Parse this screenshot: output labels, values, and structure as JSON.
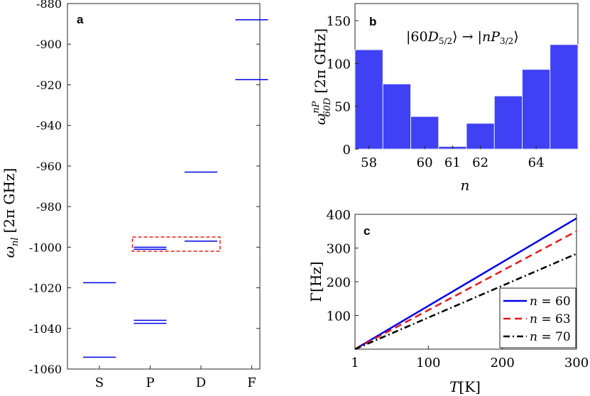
{
  "chart_data": [
    {
      "id": "a",
      "type": "energy-level-diagram",
      "panel_label": "a",
      "ylabel": "ω_nl [2π GHz]",
      "ylabel_main": "ω",
      "ylabel_sub": "nl",
      "ylabel_unit": "[2π GHz]",
      "ylim": [
        -1060,
        -880
      ],
      "yticks": [
        -880,
        -900,
        -920,
        -940,
        -960,
        -980,
        -1000,
        -1020,
        -1040,
        -1060
      ],
      "categories": [
        "S",
        "P",
        "D",
        "F"
      ],
      "levels": [
        {
          "category": "S",
          "value": -1017.5
        },
        {
          "category": "S",
          "value": -1054.2
        },
        {
          "category": "P",
          "value": -1000.0
        },
        {
          "category": "P",
          "value": -1001.0
        },
        {
          "category": "P",
          "value": -1036.0
        },
        {
          "category": "P",
          "value": -1037.5
        },
        {
          "category": "D",
          "value": -963.0
        },
        {
          "category": "D",
          "value": -997.0
        },
        {
          "category": "F",
          "value": -888.0
        },
        {
          "category": "F",
          "value": -917.5
        }
      ],
      "highlight_box": {
        "from_category": "P",
        "to_category": "D",
        "ymin": -1002,
        "ymax": -995,
        "color": "#e41a1c"
      },
      "level_color": "#0000e6"
    },
    {
      "id": "b",
      "type": "bar",
      "panel_label": "b",
      "annotation": "|60D5/2⟩ → |nP3/2⟩",
      "ylabel": "ω 60D nP [2π GHz]",
      "ylabel_main": "ω",
      "ylabel_sup": "nP",
      "ylabel_sub": "60D",
      "ylabel_unit": "[2π GHz]",
      "xlabel": "n",
      "categories": [
        57.5,
        58.5,
        59.5,
        60.5,
        61.5,
        62.5,
        63.5,
        64.5
      ],
      "values": [
        116,
        76,
        38,
        3,
        30,
        62,
        93,
        122
      ],
      "ylim": [
        0,
        160
      ],
      "yticks": [
        0,
        50,
        100,
        150
      ],
      "xlim": [
        57.5,
        65.5
      ],
      "xticks": [
        58,
        60,
        61,
        62,
        64
      ],
      "bar_color": "#4040f5"
    },
    {
      "id": "c",
      "type": "line",
      "panel_label": "c",
      "xlabel_main": "T",
      "xlabel_unit": "[K]",
      "ylabel": "Γ[Hz]",
      "xlim": [
        1,
        300
      ],
      "ylim": [
        0,
        400
      ],
      "xticks": [
        1,
        100,
        200,
        300
      ],
      "yticks": [
        100,
        200,
        300,
        400
      ],
      "series": [
        {
          "name": "n = 60",
          "n": "60",
          "x": [
            1,
            300
          ],
          "values": [
            0,
            388
          ],
          "color": "#0000e6",
          "dash": ""
        },
        {
          "name": "n = 63",
          "n": "63",
          "x": [
            1,
            300
          ],
          "values": [
            0,
            350
          ],
          "color": "#e41a1c",
          "dash": "10,6"
        },
        {
          "name": "n = 70",
          "n": "70",
          "x": [
            1,
            300
          ],
          "values": [
            0,
            283
          ],
          "color": "#000000",
          "dash": "9,4,2,4"
        }
      ],
      "legend_position": "bottom-right"
    }
  ]
}
